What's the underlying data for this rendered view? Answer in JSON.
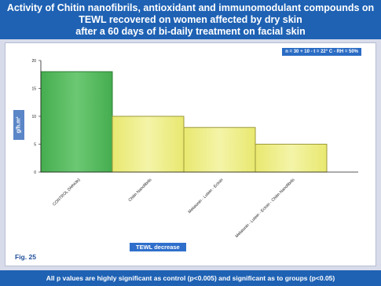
{
  "title_lines": [
    "Activity of Chitin nanofibrils, antioxidant and immunomodulant compounds on",
    "TEWL  recovered on women affected by dry skin",
    "after a 60 days of bi-daily treatment on facial skin"
  ],
  "conditions": "n = 30 + 10 - t = 22° C - RH = 50%",
  "figure_label": "Fig. 25",
  "footer": "All p values are highly significant as control (p<0.005) and significant as to groups (p<0.05)",
  "chart_data": {
    "type": "bar",
    "categories": [
      "CONTROL (Vehicle)",
      "Chitin Nanofibrils",
      "Melatonin - Lutein - Ectoin",
      "Melatonin - Lutein - Ectoin - Chitin Nanofibrils"
    ],
    "values": [
      18,
      10,
      8,
      5
    ],
    "ylabel": "g/h.m²",
    "xlabel": "TEWL decrease",
    "ylim": [
      0,
      20
    ],
    "yticks": [
      0,
      5,
      10,
      15,
      20
    ],
    "grid": false,
    "colors": {
      "control": "#45ad4f",
      "treated": "#e8e870",
      "control_edge": "#2e7d35",
      "treated_edge": "#9c9a3a"
    }
  }
}
